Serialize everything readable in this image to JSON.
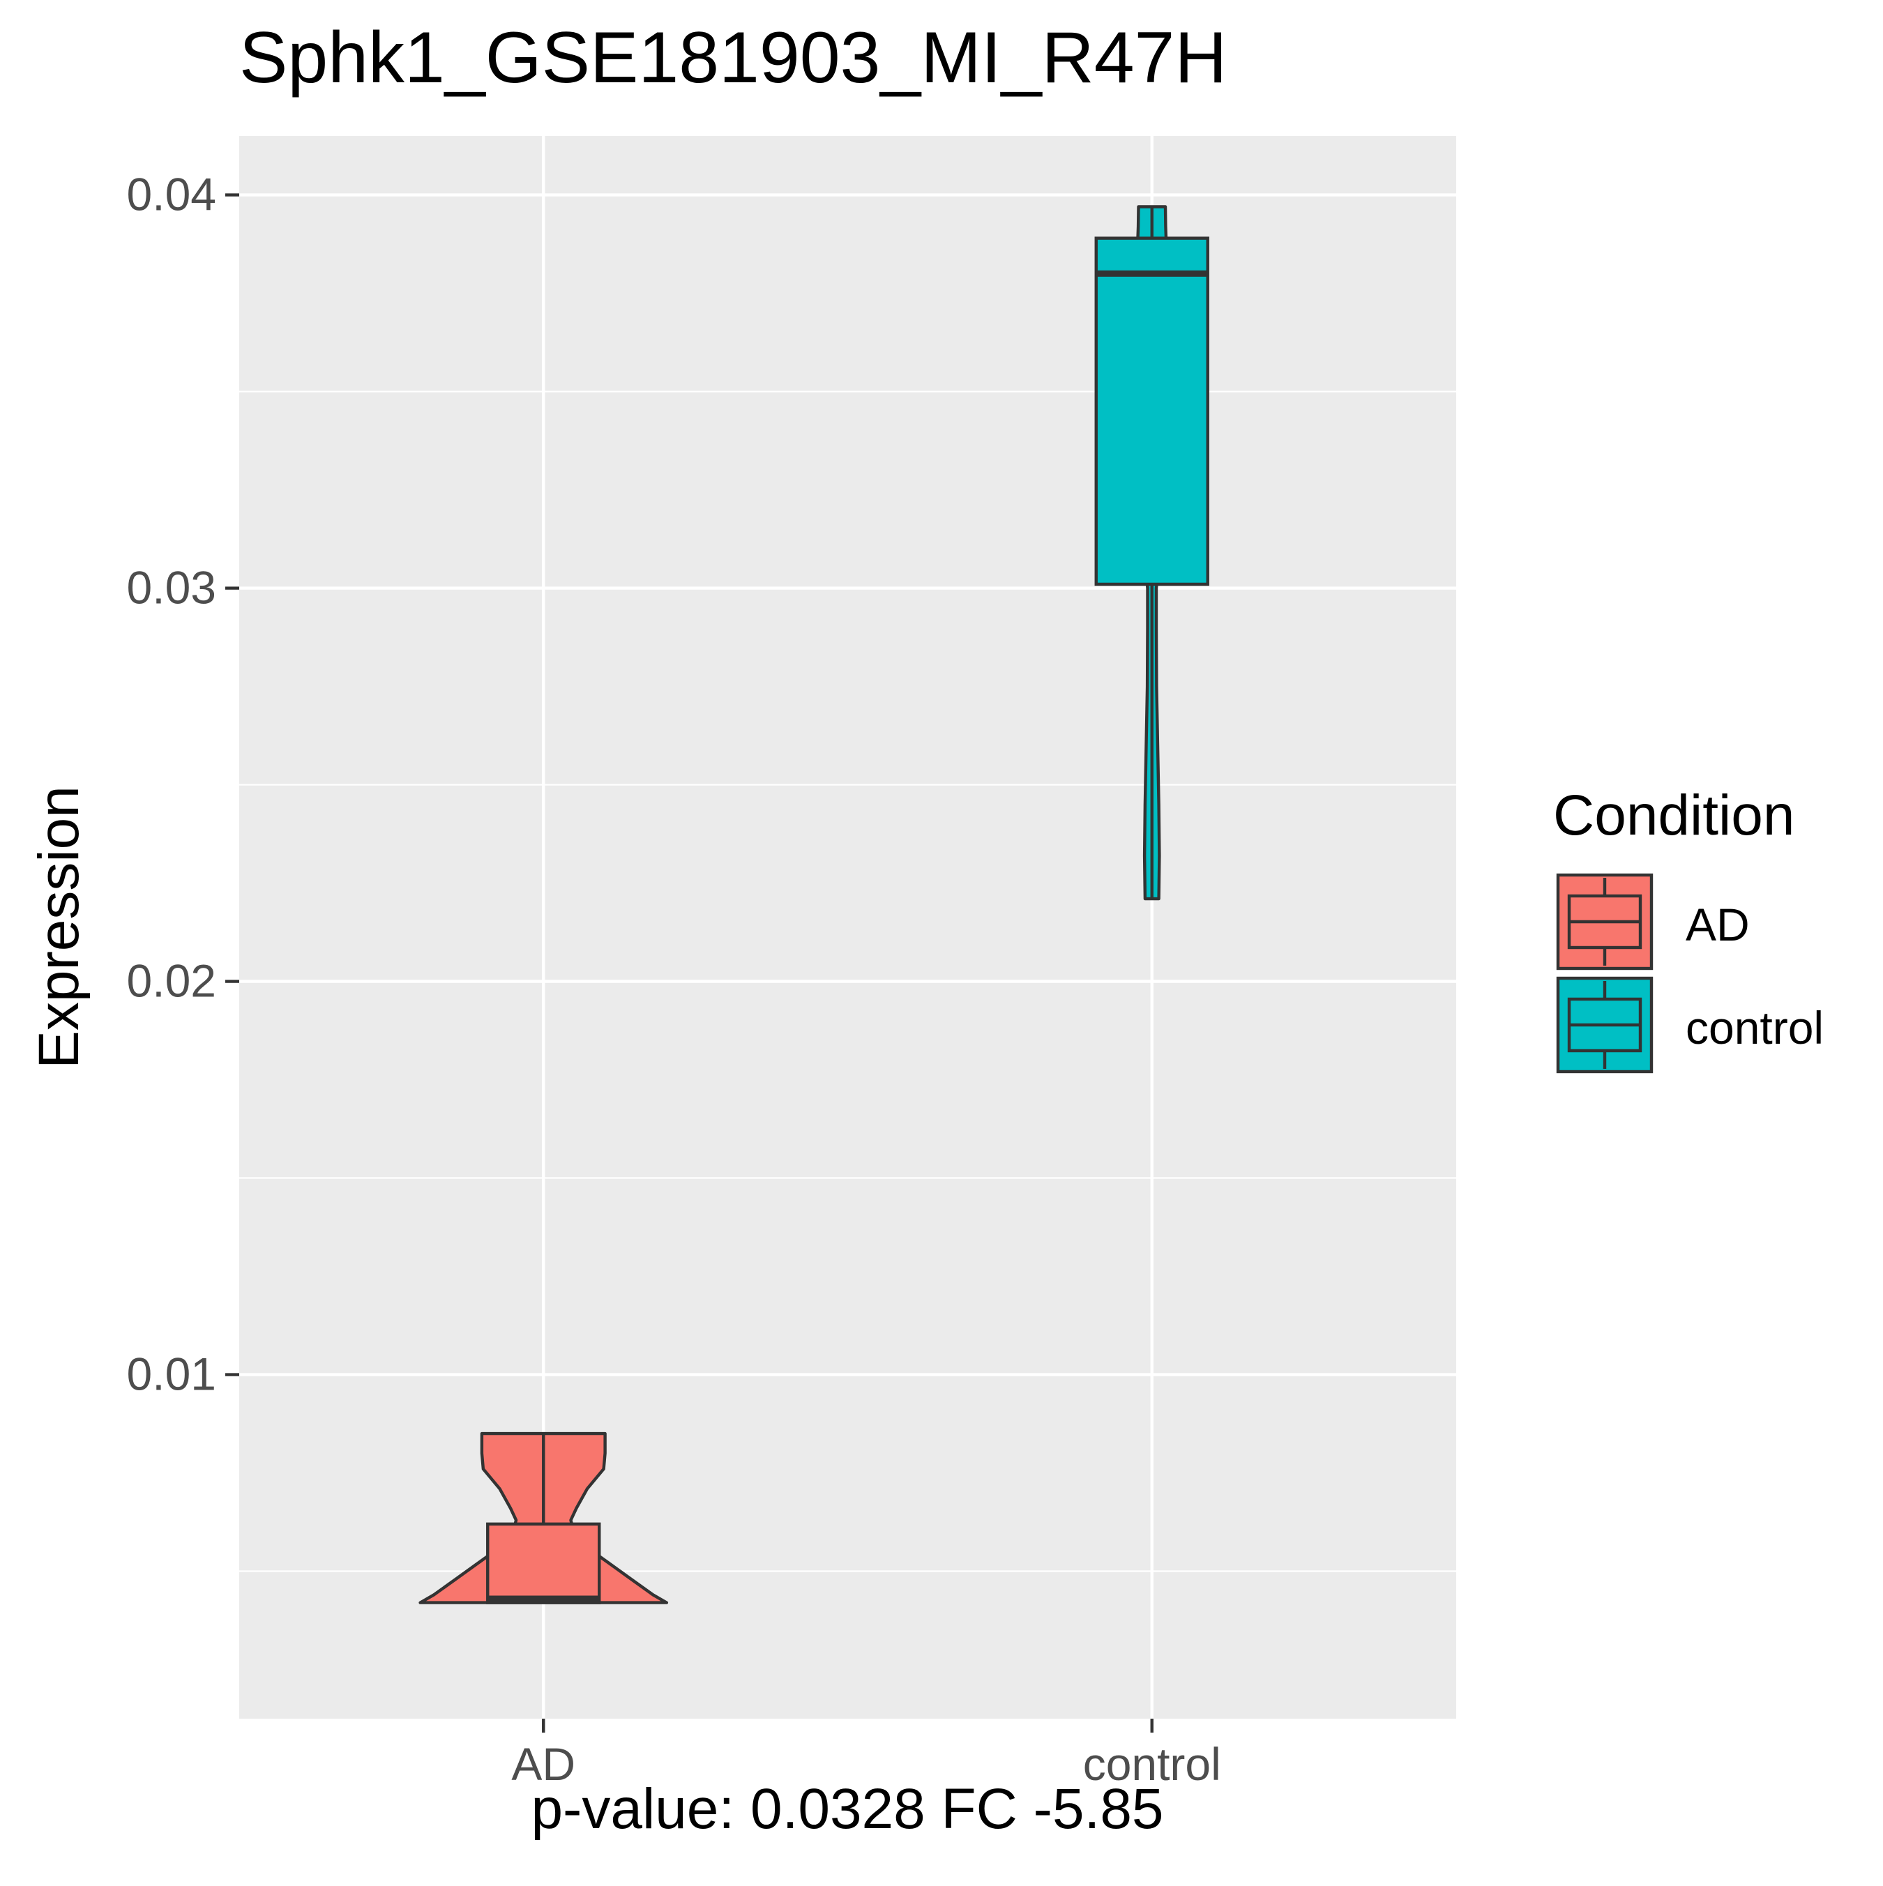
{
  "chart_data": {
    "type": "violin",
    "title": "Sphk1_GSE181903_MI_R47H",
    "xlabel": "p-value: 0.0328 FC -5.85",
    "ylabel": "Expression",
    "categories": [
      "AD",
      "control"
    ],
    "y_ticks": [
      0.01,
      0.02,
      0.03,
      0.04
    ],
    "y_tick_labels": [
      "0.01",
      "0.02",
      "0.03",
      "0.04"
    ],
    "ylim": [
      0.00125,
      0.0415
    ],
    "grid": true,
    "legend": {
      "title": "Condition",
      "position": "right",
      "entries": [
        {
          "label": "AD",
          "color": "#F8766D"
        },
        {
          "label": "control",
          "color": "#00BFC4"
        }
      ]
    },
    "groups": [
      {
        "name": "AD",
        "color": "#F8766D",
        "violin_profile": [
          [
            0.0042,
            0.45
          ],
          [
            0.0044,
            0.4
          ],
          [
            0.0048,
            0.32
          ],
          [
            0.0052,
            0.24
          ],
          [
            0.0056,
            0.16
          ],
          [
            0.006,
            0.11
          ],
          [
            0.0063,
            0.1
          ],
          [
            0.0066,
            0.12
          ],
          [
            0.0071,
            0.16
          ],
          [
            0.0076,
            0.22
          ],
          [
            0.008,
            0.225
          ],
          [
            0.0085,
            0.225
          ]
        ],
        "box": {
          "min": 0.0042,
          "q1": 0.0042,
          "median": 0.0043,
          "q3": 0.0062,
          "max": 0.0085
        }
      },
      {
        "name": "control",
        "color": "#00BFC4",
        "violin_profile": [
          [
            0.0221,
            0.025
          ],
          [
            0.0232,
            0.027
          ],
          [
            0.0245,
            0.025
          ],
          [
            0.026,
            0.021
          ],
          [
            0.0275,
            0.017
          ],
          [
            0.029,
            0.016
          ],
          [
            0.03,
            0.016
          ],
          [
            0.031,
            0.03
          ],
          [
            0.033,
            0.045
          ],
          [
            0.036,
            0.049
          ],
          [
            0.0375,
            0.05
          ],
          [
            0.038,
            0.05
          ],
          [
            0.0385,
            0.05
          ],
          [
            0.0388,
            0.052
          ],
          [
            0.0392,
            0.05
          ],
          [
            0.0397,
            0.049
          ]
        ],
        "box": {
          "min": 0.0221,
          "q1": 0.0301,
          "median": 0.038,
          "q3": 0.0389,
          "max": 0.0397
        }
      }
    ]
  }
}
